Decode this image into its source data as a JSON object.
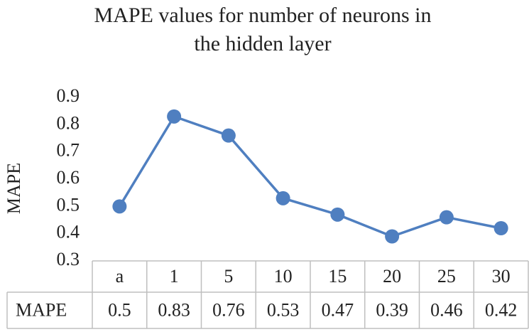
{
  "chart_data": {
    "type": "line",
    "title": "MAPE values for number of neurons in the hidden layer",
    "y_label": "MAPE",
    "categories": [
      "a",
      "1",
      "5",
      "10",
      "15",
      "20",
      "25",
      "30"
    ],
    "series": [
      {
        "name": "MAPE",
        "color": "#4f7fc0",
        "values": [
          0.5,
          0.83,
          0.76,
          0.53,
          0.47,
          0.39,
          0.46,
          0.42
        ]
      }
    ],
    "ylim": [
      0.3,
      0.9
    ],
    "yticks": [
      0.3,
      0.4,
      0.5,
      0.6,
      0.7,
      0.8,
      0.9
    ],
    "grid": false,
    "data_table": true
  }
}
